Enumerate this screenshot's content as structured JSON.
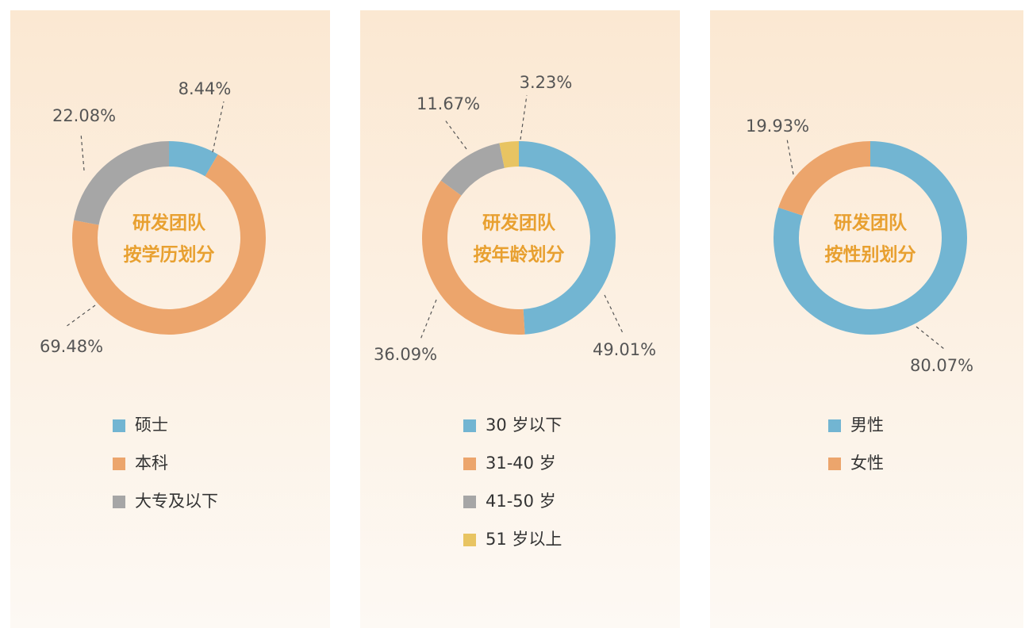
{
  "chart_data": [
    {
      "type": "pie",
      "title": "研发团队",
      "subtitle": "按学历划分",
      "categories": [
        "硕士",
        "本科",
        "大专及以下"
      ],
      "values": [
        8.44,
        69.48,
        22.08
      ],
      "value_labels": [
        "8.44%",
        "69.48%",
        "22.08%"
      ],
      "colors": [
        "#72b5d2",
        "#eca56c",
        "#a6a6a6"
      ]
    },
    {
      "type": "pie",
      "title": "研发团队",
      "subtitle": "按年龄划分",
      "categories": [
        "30 岁以下",
        "31-40 岁",
        "41-50 岁",
        "51 岁以上"
      ],
      "values": [
        49.01,
        36.09,
        11.67,
        3.23
      ],
      "value_labels": [
        "49.01%",
        "36.09%",
        "11.67%",
        "3.23%"
      ],
      "colors": [
        "#72b5d2",
        "#eca56c",
        "#a6a6a6",
        "#e8c462"
      ]
    },
    {
      "type": "pie",
      "title": "研发团队",
      "subtitle": "按性别划分",
      "categories": [
        "男性",
        "女性"
      ],
      "values": [
        80.07,
        19.93
      ],
      "value_labels": [
        "80.07%",
        "19.93%"
      ],
      "colors": [
        "#72b5d2",
        "#eca56c"
      ]
    }
  ]
}
